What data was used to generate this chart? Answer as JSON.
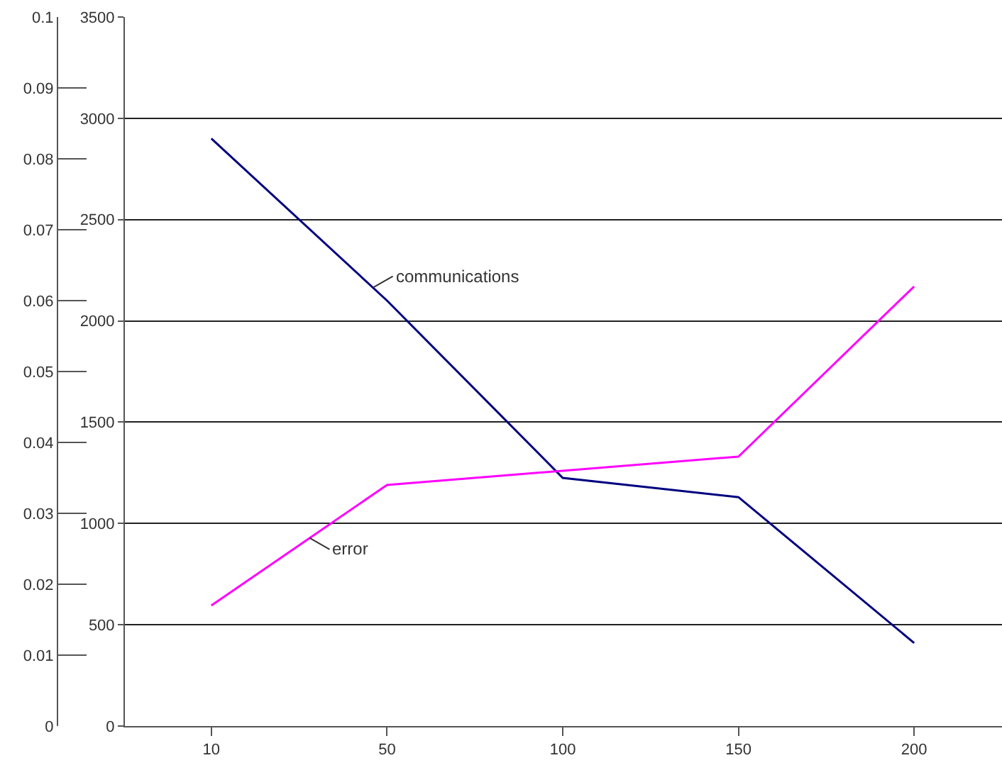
{
  "chart_data": {
    "type": "line",
    "categories": [
      "10",
      "50",
      "100",
      "150",
      "200"
    ],
    "series": [
      {
        "name": "communications",
        "color": "#000080",
        "values": [
          2900,
          2100,
          1225,
          1130,
          410
        ]
      },
      {
        "name": "error",
        "color": "#ff00ff",
        "axis": "y2",
        "values": [
          0.017,
          0.034,
          0.036,
          0.038,
          0.062
        ]
      }
    ],
    "ylim": [
      0,
      3500
    ],
    "yticks": [
      0,
      500,
      1000,
      1500,
      2000,
      2500,
      3000,
      3500
    ],
    "y2lim": [
      0,
      0.1
    ],
    "y2ticks": [
      0,
      0.01,
      0.02,
      0.03,
      0.04,
      0.05,
      0.06,
      0.07,
      0.08,
      0.09,
      0.1
    ],
    "grid": "y",
    "legend": false,
    "marker": "none",
    "line_style": "solid"
  }
}
